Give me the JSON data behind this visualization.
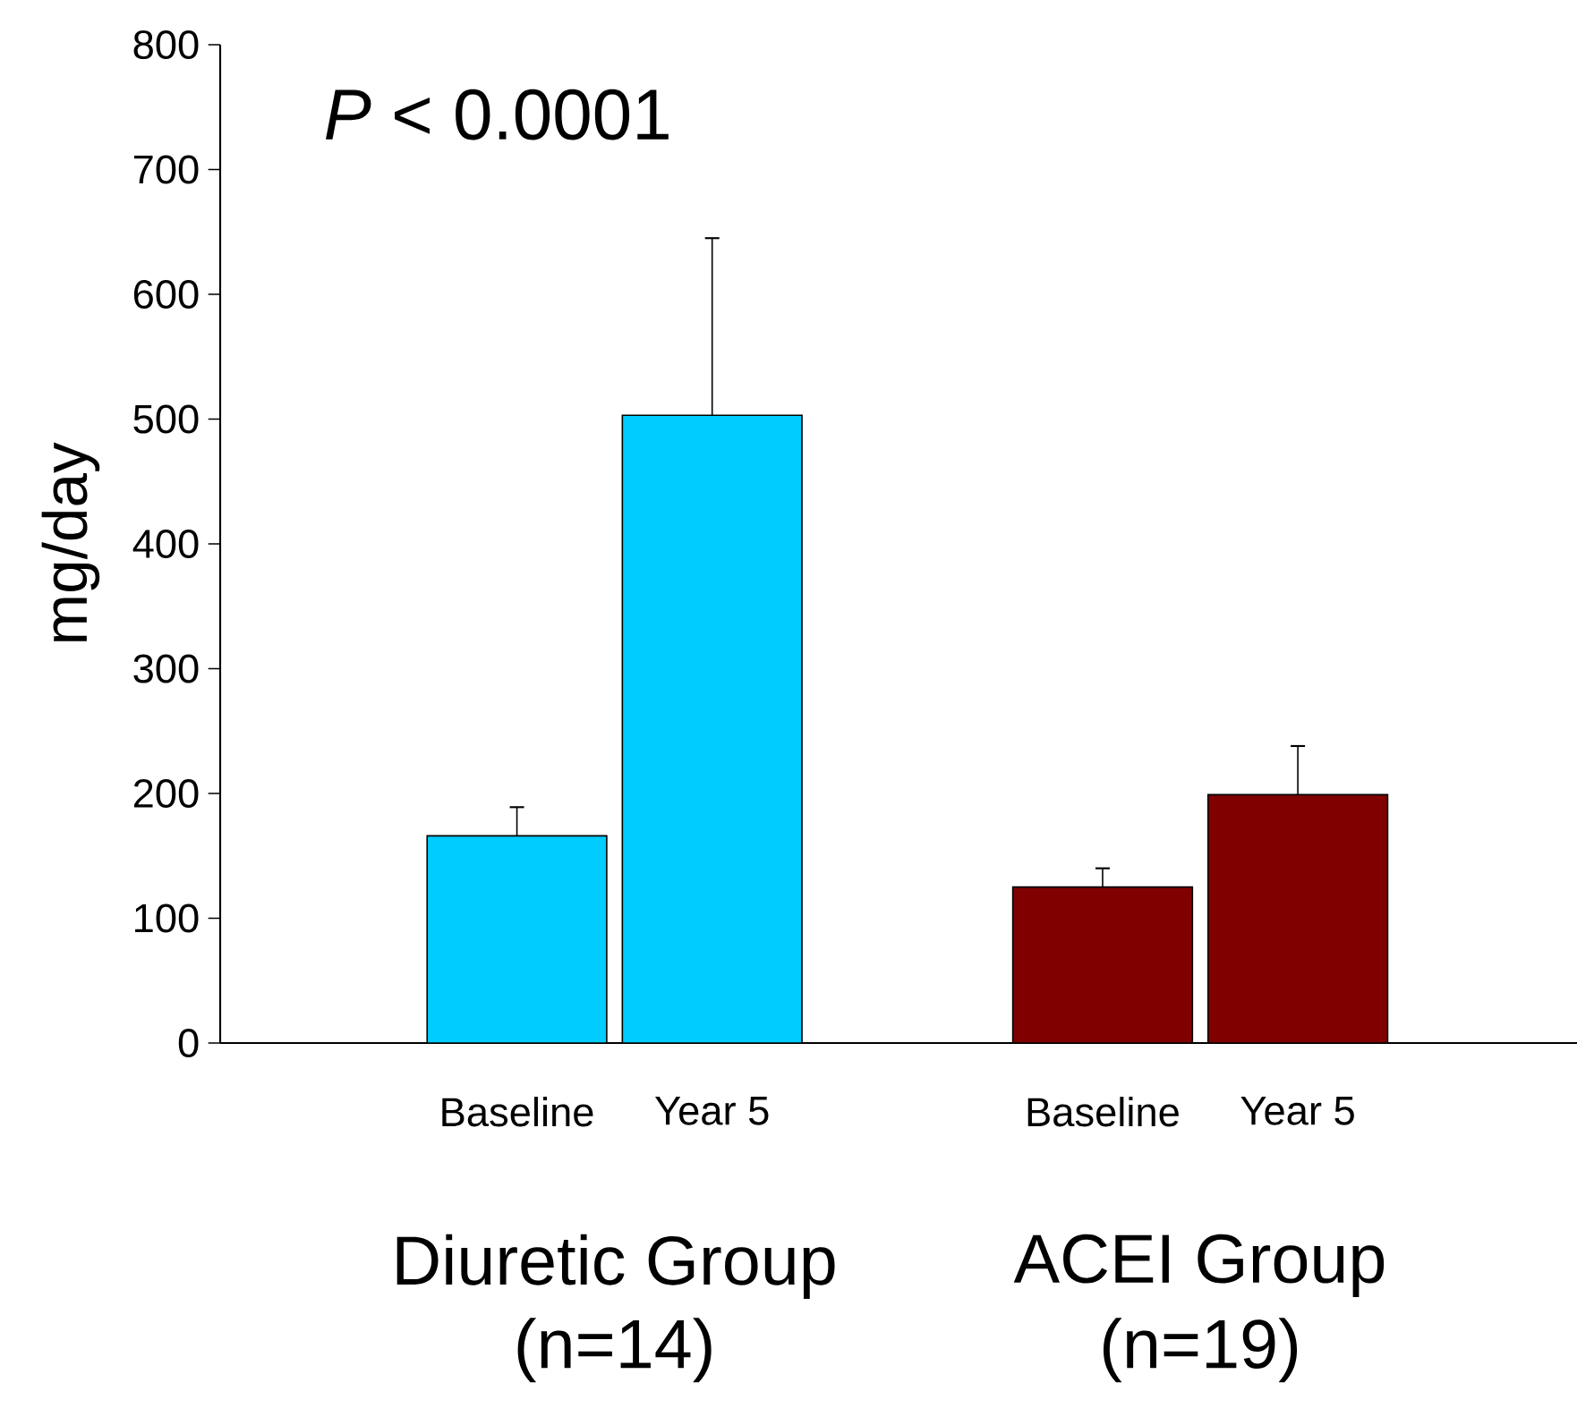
{
  "chart_data": {
    "type": "bar",
    "ylabel": "mg/day",
    "categories": [
      "Baseline",
      "Year 5",
      "Baseline",
      "Year 5"
    ],
    "values": [
      166,
      503,
      125,
      199
    ],
    "errors": [
      23,
      142,
      15,
      39
    ],
    "colors": [
      "#00ccff",
      "#00ccff",
      "#800000",
      "#800000"
    ],
    "ylim": [
      0,
      800
    ],
    "yticks": [
      0,
      100,
      200,
      300,
      400,
      500,
      600,
      700,
      800
    ],
    "grid": false,
    "annotations": [
      "*P* < 0.0001",
      "Diuretic Group",
      "ACEI Group",
      "(n=14)",
      "(n=19)"
    ]
  }
}
